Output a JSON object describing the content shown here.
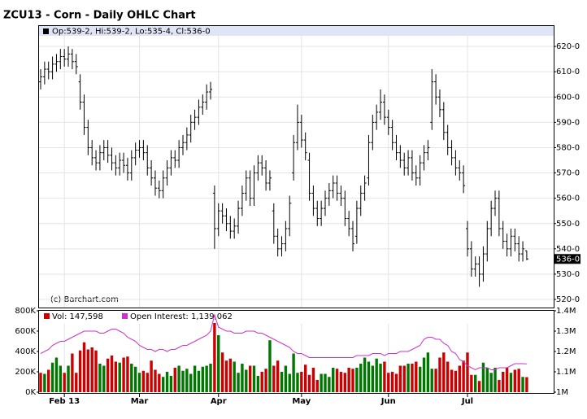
{
  "chart_data": [
    {
      "type": "ohlc",
      "title": "ZCU13 - Corn - Daily OHLC Chart",
      "header": "Op:539-2, Hi:539-2, Lo:535-4, Cl:536-0",
      "credit": "(c) Barchart.com",
      "last_label": "536-0",
      "color": "#000000",
      "grid": true,
      "open": [
        606,
        608,
        611,
        610,
        613,
        614,
        616,
        615,
        617,
        614,
        606,
        598,
        588,
        580,
        576,
        574,
        578,
        580,
        577,
        574,
        572,
        575,
        573,
        570,
        576,
        579,
        580,
        578,
        572,
        568,
        564,
        563,
        568,
        572,
        576,
        575,
        580,
        582,
        585,
        590,
        592,
        596,
        598,
        602,
        562,
        548,
        555,
        553,
        550,
        547,
        549,
        556,
        562,
        568,
        560,
        570,
        574,
        572,
        566,
        555,
        545,
        540,
        542,
        548,
        570,
        582,
        590,
        583,
        575,
        562,
        556,
        552,
        556,
        560,
        563,
        566,
        562,
        560,
        552,
        548,
        545,
        556,
        562,
        568,
        582,
        590,
        594,
        598,
        592,
        588,
        582,
        578,
        575,
        572,
        576,
        570,
        568,
        574,
        578,
        590,
        606,
        600,
        595,
        586,
        580,
        576,
        572,
        570,
        548,
        540,
        532,
        534,
        530,
        538,
        548,
        556,
        560,
        548,
        543,
        540,
        545,
        542,
        538,
        539.25
      ],
      "high": [
        611,
        614,
        614,
        616,
        617,
        619,
        619,
        620,
        619,
        617,
        609,
        601,
        591,
        583,
        579,
        581,
        583,
        583,
        580,
        577,
        578,
        578,
        576,
        579,
        582,
        583,
        583,
        581,
        575,
        571,
        567,
        571,
        575,
        579,
        579,
        583,
        585,
        588,
        593,
        595,
        599,
        601,
        605,
        606,
        565,
        558,
        558,
        556,
        553,
        552,
        559,
        565,
        571,
        571,
        573,
        577,
        577,
        575,
        571,
        558,
        548,
        545,
        551,
        561,
        585,
        597,
        593,
        586,
        578,
        565,
        559,
        559,
        563,
        566,
        569,
        569,
        565,
        563,
        555,
        551,
        559,
        565,
        569,
        585,
        593,
        597,
        603,
        601,
        595,
        591,
        585,
        581,
        578,
        579,
        579,
        573,
        577,
        581,
        583,
        611,
        609,
        603,
        598,
        589,
        583,
        579,
        575,
        573,
        551,
        543,
        537,
        537,
        541,
        551,
        559,
        563,
        563,
        551,
        546,
        548,
        548,
        545,
        543,
        539.25
      ],
      "low": [
        603,
        605,
        607,
        607,
        610,
        611,
        612,
        612,
        611,
        609,
        595,
        585,
        577,
        573,
        571,
        571,
        575,
        574,
        571,
        569,
        569,
        570,
        567,
        567,
        573,
        576,
        575,
        569,
        565,
        561,
        560,
        560,
        565,
        569,
        572,
        572,
        577,
        579,
        582,
        587,
        589,
        593,
        595,
        599,
        540,
        545,
        550,
        547,
        544,
        544,
        546,
        553,
        559,
        557,
        557,
        567,
        569,
        563,
        563,
        542,
        537,
        537,
        539,
        545,
        567,
        579,
        580,
        575,
        559,
        553,
        549,
        549,
        553,
        557,
        560,
        559,
        557,
        549,
        545,
        539,
        542,
        553,
        559,
        565,
        579,
        587,
        591,
        589,
        585,
        579,
        575,
        572,
        569,
        569,
        567,
        565,
        565,
        571,
        575,
        587,
        597,
        592,
        583,
        577,
        573,
        569,
        567,
        562,
        537,
        529,
        529,
        525,
        527,
        535,
        545,
        553,
        545,
        540,
        537,
        537,
        539,
        535,
        535,
        535.5
      ],
      "close": [
        608,
        611,
        610,
        613,
        614,
        616,
        615,
        617,
        614,
        612,
        598,
        588,
        580,
        576,
        574,
        578,
        580,
        577,
        574,
        572,
        575,
        573,
        570,
        576,
        579,
        580,
        578,
        572,
        568,
        564,
        563,
        568,
        572,
        576,
        575,
        580,
        582,
        585,
        590,
        592,
        596,
        598,
        602,
        603,
        548,
        555,
        553,
        550,
        547,
        549,
        556,
        562,
        568,
        560,
        570,
        574,
        572,
        566,
        568,
        545,
        540,
        542,
        548,
        558,
        582,
        590,
        583,
        578,
        562,
        556,
        552,
        556,
        560,
        563,
        566,
        562,
        560,
        552,
        548,
        542,
        556,
        562,
        566,
        582,
        590,
        594,
        598,
        592,
        588,
        582,
        578,
        575,
        572,
        576,
        570,
        568,
        574,
        578,
        580,
        606,
        600,
        595,
        586,
        580,
        576,
        572,
        570,
        565,
        540,
        532,
        534,
        530,
        538,
        548,
        556,
        560,
        548,
        543,
        540,
        545,
        542,
        538,
        540,
        536
      ],
      "ylim": [
        516.8,
        624.2
      ],
      "yticks": [
        {
          "value": 520,
          "label": "520-0"
        },
        {
          "value": 530,
          "label": "530-0"
        },
        {
          "value": 540,
          "label": "540-0"
        },
        {
          "value": 550,
          "label": "550-0"
        },
        {
          "value": 560,
          "label": "560-0"
        },
        {
          "value": 570,
          "label": "570-0"
        },
        {
          "value": 580,
          "label": "580-0"
        },
        {
          "value": 590,
          "label": "590-0"
        },
        {
          "value": 600,
          "label": "600-0"
        },
        {
          "value": 610,
          "label": "610-0"
        },
        {
          "value": 620,
          "label": "620-0"
        }
      ]
    },
    {
      "type": "volume",
      "up_color": "#007700",
      "categories": [
        null,
        null,
        null,
        null,
        null,
        null,
        "Feb 13",
        null,
        null,
        null,
        null,
        null,
        null,
        null,
        null,
        null,
        null,
        null,
        null,
        null,
        null,
        null,
        null,
        null,
        null,
        "Mar",
        null,
        null,
        null,
        null,
        null,
        null,
        null,
        null,
        null,
        null,
        null,
        null,
        null,
        null,
        null,
        null,
        null,
        null,
        null,
        "Apr",
        null,
        null,
        null,
        null,
        null,
        null,
        null,
        null,
        null,
        null,
        null,
        null,
        null,
        null,
        null,
        null,
        null,
        null,
        null,
        null,
        "May",
        null,
        null,
        null,
        null,
        null,
        null,
        null,
        null,
        null,
        null,
        null,
        null,
        null,
        null,
        null,
        null,
        null,
        null,
        null,
        null,
        null,
        "Jun",
        null,
        null,
        null,
        null,
        null,
        null,
        null,
        null,
        null,
        null,
        null,
        null,
        null,
        null,
        null,
        null,
        null,
        null,
        null,
        "Jul",
        null,
        null,
        null,
        null,
        null,
        null,
        null,
        null,
        null,
        null,
        null,
        null,
        null,
        null,
        null
      ],
      "series": [
        {
          "name": "Vol: 147,598",
          "color": "#cc0000",
          "values": [
            190000,
            180000,
            220000,
            290000,
            340000,
            260000,
            190000,
            260000,
            380000,
            190000,
            410000,
            490000,
            420000,
            440000,
            410000,
            280000,
            260000,
            330000,
            360000,
            300000,
            290000,
            340000,
            350000,
            280000,
            250000,
            190000,
            210000,
            190000,
            310000,
            220000,
            180000,
            150000,
            200000,
            160000,
            240000,
            260000,
            210000,
            230000,
            180000,
            260000,
            210000,
            250000,
            260000,
            280000,
            680000,
            560000,
            390000,
            310000,
            330000,
            300000,
            190000,
            280000,
            220000,
            260000,
            260000,
            160000,
            200000,
            230000,
            510000,
            260000,
            310000,
            200000,
            260000,
            180000,
            380000,
            190000,
            200000,
            270000,
            170000,
            240000,
            120000,
            180000,
            180000,
            150000,
            240000,
            230000,
            200000,
            190000,
            240000,
            230000,
            240000,
            280000,
            340000,
            300000,
            260000,
            330000,
            280000,
            300000,
            190000,
            200000,
            180000,
            260000,
            260000,
            280000,
            280000,
            300000,
            250000,
            340000,
            390000,
            230000,
            230000,
            340000,
            390000,
            300000,
            220000,
            210000,
            260000,
            310000,
            390000,
            170000,
            170000,
            110000,
            290000,
            240000,
            190000,
            240000,
            120000,
            200000,
            240000,
            190000,
            220000,
            230000,
            150000,
            147598
          ]
        },
        {
          "name": "Open Interest: 1,139,062",
          "color": "#cc33cc",
          "axis": "y2",
          "values": [
            1190000,
            1200000,
            1210000,
            1230000,
            1240000,
            1250000,
            1250000,
            1260000,
            1270000,
            1280000,
            1290000,
            1300000,
            1300000,
            1300000,
            1300000,
            1290000,
            1290000,
            1300000,
            1310000,
            1310000,
            1300000,
            1290000,
            1270000,
            1260000,
            1250000,
            1230000,
            1220000,
            1210000,
            1210000,
            1200000,
            1210000,
            1210000,
            1200000,
            1210000,
            1210000,
            1220000,
            1230000,
            1230000,
            1240000,
            1250000,
            1260000,
            1270000,
            1280000,
            1300000,
            1380000,
            1320000,
            1310000,
            1300000,
            1300000,
            1290000,
            1290000,
            1290000,
            1300000,
            1300000,
            1300000,
            1290000,
            1290000,
            1280000,
            1270000,
            1260000,
            1250000,
            1240000,
            1230000,
            1220000,
            1200000,
            1190000,
            1190000,
            1180000,
            1170000,
            1170000,
            1170000,
            1170000,
            1170000,
            1170000,
            1170000,
            1170000,
            1170000,
            1170000,
            1170000,
            1170000,
            1180000,
            1180000,
            1180000,
            1180000,
            1190000,
            1190000,
            1190000,
            1180000,
            1190000,
            1190000,
            1190000,
            1200000,
            1200000,
            1200000,
            1210000,
            1220000,
            1230000,
            1260000,
            1270000,
            1270000,
            1260000,
            1260000,
            1240000,
            1230000,
            1200000,
            1190000,
            1160000,
            1150000,
            1130000,
            1120000,
            1110000,
            1120000,
            1120000,
            1120000,
            1110000,
            1110000,
            1120000,
            1120000,
            1120000,
            1130000,
            1140000,
            1140000,
            1140000,
            1139062
          ]
        }
      ],
      "ylim": [
        0,
        800000
      ],
      "yticks": [
        {
          "value": 0,
          "label": "0K"
        },
        {
          "value": 200000,
          "label": "200K"
        },
        {
          "value": 400000,
          "label": "400K"
        },
        {
          "value": 600000,
          "label": "600K"
        },
        {
          "value": 800000,
          "label": "800K"
        }
      ],
      "y2lim": [
        1000000,
        1400000
      ],
      "y2ticks": [
        {
          "value": 1000000,
          "label": "1M"
        },
        {
          "value": 1100000,
          "label": "1.1M"
        },
        {
          "value": 1200000,
          "label": "1.2M"
        },
        {
          "value": 1300000,
          "label": "1.3M"
        },
        {
          "value": 1400000,
          "label": "1.4M"
        }
      ]
    }
  ]
}
